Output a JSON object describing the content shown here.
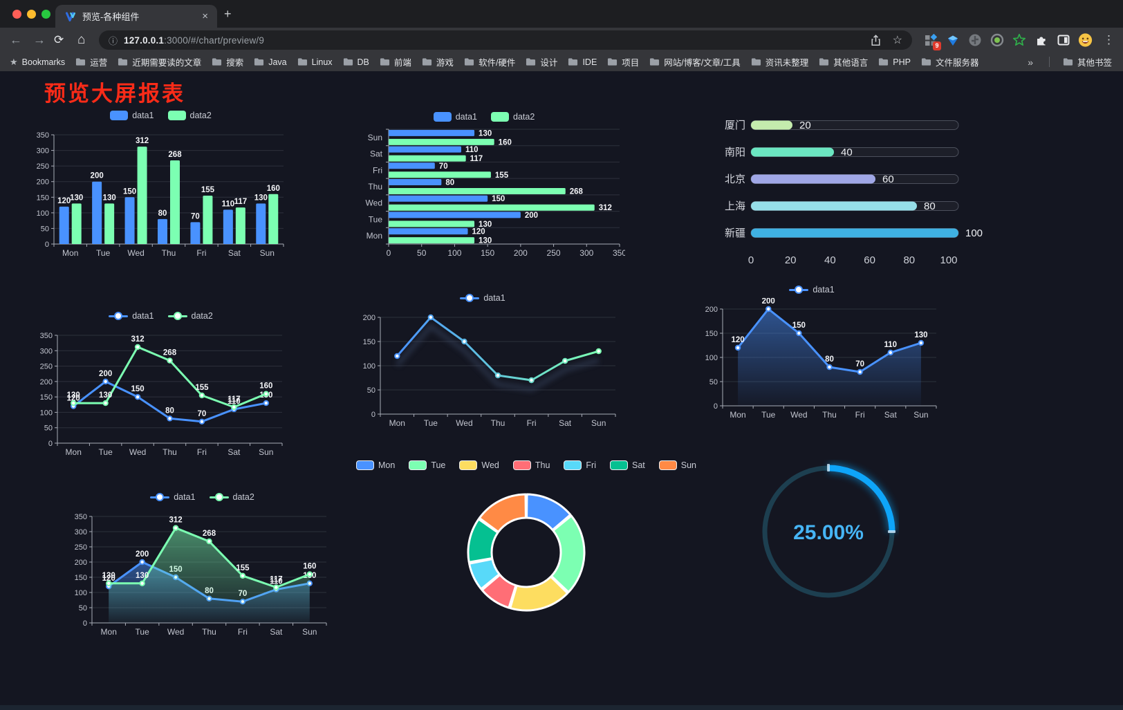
{
  "browser": {
    "window_controls": [
      "#ff5f57",
      "#febc2e",
      "#28c840"
    ],
    "tab": {
      "title": "预览-各种组件",
      "close_glyph": "×",
      "new_tab_glyph": "+"
    },
    "toolbar": {
      "back_glyph": "←",
      "forward_glyph": "→",
      "reload_glyph": "⟳",
      "home_glyph": "⌂",
      "info_glyph": "ⓘ",
      "url_host": "127.0.0.1",
      "url_path": ":3000/#/chart/preview/9",
      "star_glyph": "☆",
      "extension_badge": "9",
      "menu_glyph": "⋮"
    },
    "bookmarks_bar": {
      "root_star_glyph": "★",
      "root_label": "Bookmarks",
      "folders": [
        "运营",
        "近期需要读的文章",
        "搜索",
        "Java",
        "Linux",
        "DB",
        "前端",
        "游戏",
        "软件/硬件",
        "设计",
        "IDE",
        "项目",
        "网站/博客/文章/工具",
        "资讯未整理",
        "其他语言",
        "PHP",
        "文件服务器"
      ],
      "overflow_glyph": "»",
      "other_bookmarks_label": "其他书签"
    }
  },
  "page": {
    "title": "预览大屏报表",
    "title_color": "#fb2b18",
    "background": "#141621"
  },
  "chart_data": [
    {
      "id": "grouped-bar",
      "type": "bar",
      "categories": [
        "Mon",
        "Tue",
        "Wed",
        "Thu",
        "Fri",
        "Sat",
        "Sun"
      ],
      "series": [
        {
          "name": "data1",
          "color": "#4992ff",
          "values": [
            120,
            200,
            150,
            80,
            70,
            110,
            130
          ]
        },
        {
          "name": "data2",
          "color": "#7cffb2",
          "values": [
            130,
            130,
            312,
            268,
            155,
            117,
            160
          ]
        }
      ],
      "ylim": [
        0,
        350
      ],
      "ytick_step": 50,
      "legend": true,
      "value_labels": true
    },
    {
      "id": "horizontal-bar",
      "type": "bar-horizontal",
      "categories": [
        "Mon",
        "Tue",
        "Wed",
        "Thu",
        "Fri",
        "Sat",
        "Sun"
      ],
      "series": [
        {
          "name": "data1",
          "color": "#4992ff",
          "values": [
            120,
            200,
            150,
            80,
            70,
            110,
            130
          ]
        },
        {
          "name": "data2",
          "color": "#7cffb2",
          "values": [
            130,
            130,
            312,
            268,
            155,
            117,
            160
          ]
        }
      ],
      "xlim": [
        0,
        350
      ],
      "xtick_step": 50,
      "legend": true,
      "value_labels": true
    },
    {
      "id": "capsule-bar",
      "type": "capsule",
      "items": [
        {
          "label": "厦门",
          "value": 20,
          "color": "#c4ebad"
        },
        {
          "label": "南阳",
          "value": 40,
          "color": "#6be6c1"
        },
        {
          "label": "北京",
          "value": 60,
          "color": "#a0a7e6"
        },
        {
          "label": "上海",
          "value": 80,
          "color": "#96dee8"
        },
        {
          "label": "新疆",
          "value": 100,
          "color": "#3fb1e3"
        }
      ],
      "xlim": [
        0,
        100
      ],
      "xticks": [
        0,
        20,
        40,
        60,
        80,
        100
      ]
    },
    {
      "id": "dual-line",
      "type": "line",
      "categories": [
        "Mon",
        "Tue",
        "Wed",
        "Thu",
        "Fri",
        "Sat",
        "Sun"
      ],
      "series": [
        {
          "name": "data1",
          "color": "#4992ff",
          "values": [
            120,
            200,
            150,
            80,
            70,
            110,
            130
          ]
        },
        {
          "name": "data2",
          "color": "#7cffb2",
          "values": [
            130,
            130,
            312,
            268,
            155,
            117,
            160
          ]
        }
      ],
      "ylim": [
        0,
        350
      ],
      "ytick_step": 50,
      "legend": true,
      "value_labels": true
    },
    {
      "id": "gradient-line",
      "type": "line",
      "categories": [
        "Mon",
        "Tue",
        "Wed",
        "Thu",
        "Fri",
        "Sat",
        "Sun"
      ],
      "series": [
        {
          "name": "data1",
          "color": "#4992ff",
          "color_end": "#7cffb2",
          "gradient": true,
          "shadow": true,
          "values": [
            120,
            200,
            150,
            80,
            70,
            110,
            130
          ]
        }
      ],
      "ylim": [
        0,
        200
      ],
      "ytick_step": 50,
      "legend": true,
      "value_labels": false
    },
    {
      "id": "area-line",
      "type": "line",
      "categories": [
        "Mon",
        "Tue",
        "Wed",
        "Thu",
        "Fri",
        "Sat",
        "Sun"
      ],
      "series": [
        {
          "name": "data1",
          "color": "#4992ff",
          "area": true,
          "values": [
            120,
            200,
            150,
            80,
            70,
            110,
            130
          ]
        }
      ],
      "ylim": [
        0,
        200
      ],
      "ytick_step": 50,
      "legend": true,
      "value_labels": true
    },
    {
      "id": "dual-area-line",
      "type": "line",
      "categories": [
        "Mon",
        "Tue",
        "Wed",
        "Thu",
        "Fri",
        "Sat",
        "Sun"
      ],
      "series": [
        {
          "name": "data1",
          "color": "#4992ff",
          "area": true,
          "values": [
            120,
            200,
            150,
            80,
            70,
            110,
            130
          ]
        },
        {
          "name": "data2",
          "color": "#7cffb2",
          "area": true,
          "values": [
            130,
            130,
            312,
            268,
            155,
            117,
            160
          ]
        }
      ],
      "ylim": [
        0,
        350
      ],
      "ytick_step": 50,
      "legend": true,
      "value_labels": true
    },
    {
      "id": "doughnut",
      "type": "pie",
      "legend": true,
      "items": [
        {
          "label": "Mon",
          "value": 120,
          "color": "#4992ff"
        },
        {
          "label": "Tue",
          "value": 200,
          "color": "#7cffb2"
        },
        {
          "label": "Wed",
          "value": 150,
          "color": "#fddd60"
        },
        {
          "label": "Thu",
          "value": 80,
          "color": "#ff6e76"
        },
        {
          "label": "Fri",
          "value": 70,
          "color": "#58d9f9"
        },
        {
          "label": "Sat",
          "value": 110,
          "color": "#05c091"
        },
        {
          "label": "Sun",
          "value": 130,
          "color": "#ff8a45"
        }
      ]
    },
    {
      "id": "gauge",
      "type": "gauge",
      "value": 25,
      "max": 100,
      "label": "25.00%",
      "color": "#0ea5f9",
      "track_color": "#1d3f50",
      "text_color": "#46b5f5"
    }
  ]
}
